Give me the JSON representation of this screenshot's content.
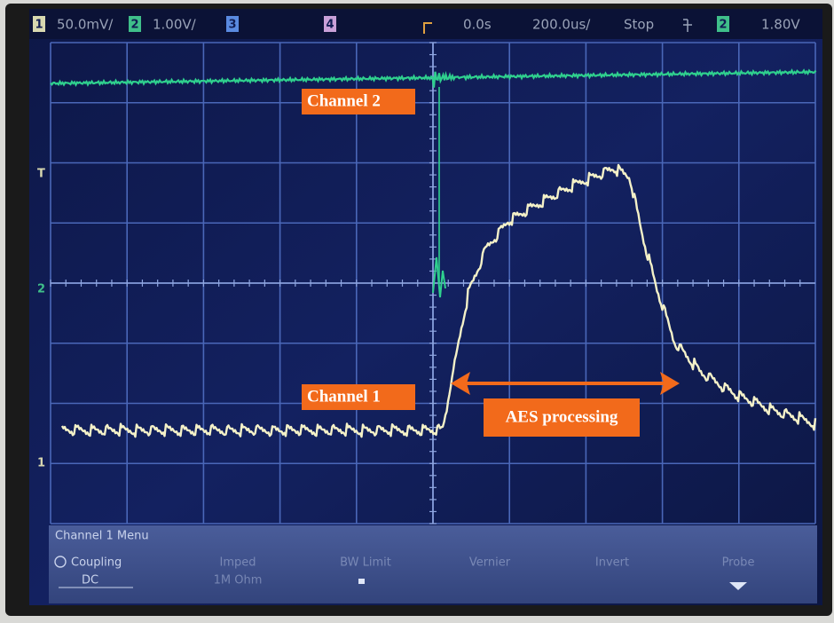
{
  "status_bar": {
    "ch1_label": "1",
    "ch1_scale": "50.0mV/",
    "ch2_label": "2",
    "ch2_scale": "1.00V/",
    "ch3_label": "3",
    "ch4_label": "4",
    "time_offset": "0.0s",
    "time_scale": "200.0us/",
    "run_state": "Stop",
    "trigger_source": "2",
    "trigger_level": "1.80V"
  },
  "markers": {
    "trigger": "T",
    "ch2": "2",
    "ch1": "1"
  },
  "annotations": {
    "channel2": "Channel 2",
    "channel1": "Channel 1",
    "aes": "AES processing"
  },
  "menu": {
    "title": "Channel 1  Menu",
    "items": [
      {
        "label": "Coupling",
        "value": "DC"
      },
      {
        "label": "Imped",
        "value": "1M Ohm"
      },
      {
        "label": "BW Limit"
      },
      {
        "label": "Vernier"
      },
      {
        "label": "Invert"
      },
      {
        "label": "Probe"
      }
    ]
  }
}
